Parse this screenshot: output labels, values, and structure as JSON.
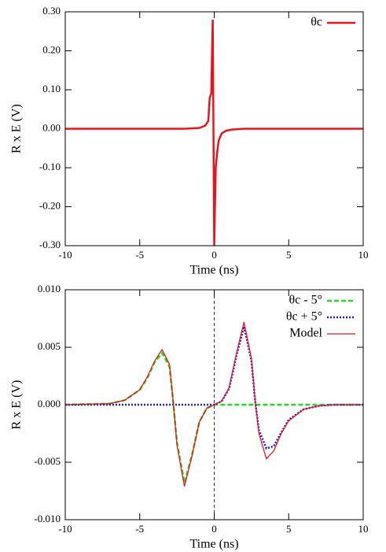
{
  "chart_data": [
    {
      "type": "line",
      "xlabel": "Time (ns)",
      "ylabel": "R x E (V)",
      "legend": "upper right",
      "x": [
        -10,
        -2,
        -1,
        -0.6,
        -0.4,
        -0.3,
        -0.2,
        -0.1,
        0,
        0.1,
        0.2,
        0.3,
        0.5,
        0.8,
        1.2,
        2,
        10
      ],
      "series": [
        {
          "name": "θc",
          "color": "#e8141c",
          "dash": "solid",
          "width": 2.5,
          "values": [
            0,
            0,
            0.002,
            0.008,
            0.02,
            0.08,
            0.09,
            0.28,
            -0.3,
            -0.1,
            -0.06,
            -0.03,
            -0.012,
            -0.005,
            -0.002,
            0,
            0
          ]
        }
      ],
      "xlim": [
        -10,
        10
      ],
      "ylim": [
        -0.3,
        0.3
      ],
      "xticks": [
        -10,
        -5,
        0,
        5,
        10
      ],
      "yticks": [
        {
          "value": -0.3,
          "label": "-0.30"
        },
        {
          "value": -0.2,
          "label": "-0.20"
        },
        {
          "value": -0.1,
          "label": "-0.10"
        },
        {
          "value": 0,
          "label": "0.00"
        },
        {
          "value": 0.1,
          "label": "0.10"
        },
        {
          "value": 0.2,
          "label": "0.20"
        },
        {
          "value": 0.3,
          "label": "0.30"
        }
      ]
    },
    {
      "type": "line",
      "xlabel": "Time (ns)",
      "ylabel": "R x E (V)",
      "legend": "upper right",
      "vline": 0,
      "x": [
        -10,
        -7,
        -6,
        -5,
        -4.5,
        -4,
        -3.5,
        -3,
        -2.75,
        -2.5,
        -2,
        -1.5,
        -1,
        -0.5,
        0,
        0.5,
        1,
        1.5,
        2,
        2.5,
        2.75,
        3,
        3.5,
        4,
        4.5,
        5,
        6,
        7,
        8,
        10
      ],
      "series": [
        {
          "name": "θc - 5°",
          "color": "#22dd22",
          "dash": "dashed",
          "width": 2.5,
          "values": [
            0,
            0.0001,
            0.0004,
            0.0013,
            0.0023,
            0.0037,
            0.0045,
            0.0033,
            0.0002,
            -0.0033,
            -0.0068,
            -0.0044,
            -0.0015,
            -0.0003,
            0,
            0,
            0,
            0,
            0,
            0,
            0,
            0,
            0,
            0,
            0,
            0,
            0,
            0,
            0,
            0
          ]
        },
        {
          "name": "θc + 5°",
          "color": "#1a1aee",
          "dash": "dotted",
          "width": 2.5,
          "values": [
            0,
            0,
            0,
            0,
            0,
            0,
            0,
            0,
            0,
            0,
            0,
            0,
            0,
            0,
            0,
            0.0003,
            0.0014,
            0.0043,
            0.0068,
            0.0038,
            0.0003,
            -0.0022,
            -0.0038,
            -0.0036,
            -0.0024,
            -0.0013,
            -0.0004,
            -0.0001,
            0,
            0
          ]
        },
        {
          "name": "Model",
          "color": "#e8141c",
          "dash": "solid",
          "width": 1.3,
          "values": [
            0,
            0.0001,
            0.0004,
            0.0013,
            0.0024,
            0.0038,
            0.0048,
            0.0035,
            0.0002,
            -0.0035,
            -0.0071,
            -0.0045,
            -0.0015,
            -0.0003,
            0,
            0.0003,
            0.0015,
            0.0045,
            0.0072,
            0.004,
            0.0003,
            -0.0025,
            -0.0047,
            -0.004,
            -0.0025,
            -0.0014,
            -0.0004,
            -0.0001,
            0,
            0
          ]
        }
      ],
      "xlim": [
        -10,
        10
      ],
      "ylim": [
        -0.01,
        0.01
      ],
      "xticks": [
        -10,
        -5,
        0,
        5,
        10
      ],
      "yticks": [
        {
          "value": -0.01,
          "label": "-0.010"
        },
        {
          "value": -0.005,
          "label": "-0.005"
        },
        {
          "value": 0,
          "label": "0.000"
        },
        {
          "value": 0.005,
          "label": "0.005"
        },
        {
          "value": 0.01,
          "label": "0.010"
        }
      ]
    }
  ]
}
